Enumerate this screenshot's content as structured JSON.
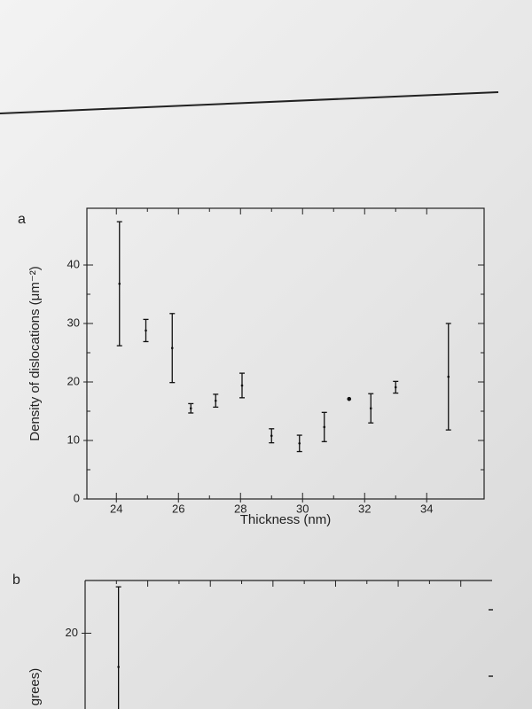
{
  "chart_data": [
    {
      "type": "errorbar",
      "panel_label": "a",
      "xlabel": "Thickness (nm)",
      "ylabel": "Density of dislocations (μm⁻²)",
      "x": [
        24.1,
        24.95,
        25.8,
        26.4,
        27.2,
        28.05,
        29.0,
        29.9,
        30.7,
        31.5,
        32.2,
        33.0,
        34.7
      ],
      "values": [
        36.8,
        28.8,
        25.8,
        15.5,
        16.8,
        19.4,
        10.8,
        9.5,
        12.3,
        17.1,
        15.5,
        19.1,
        20.9
      ],
      "errors": [
        10.6,
        1.9,
        5.9,
        0.8,
        1.1,
        2.1,
        1.2,
        1.4,
        2.5,
        0,
        2.5,
        1.0,
        9.1
      ],
      "color": "#111111",
      "xlim": [
        23.05,
        35.85
      ],
      "ylim": [
        0,
        49.7
      ],
      "xticks": [
        24,
        26,
        28,
        30,
        32,
        34
      ],
      "yticks": [
        0,
        10,
        20,
        30,
        40
      ]
    },
    {
      "type": "errorbar",
      "panel_label": "b",
      "ylabel": "grees)",
      "x": [
        24.1
      ],
      "values": [
        18.4
      ],
      "errors": [
        3.8
      ],
      "color": "#111111",
      "xlim": [
        23.05,
        35.85
      ],
      "ylim": [
        8,
        22.5
      ],
      "yticks": [
        20
      ]
    }
  ]
}
